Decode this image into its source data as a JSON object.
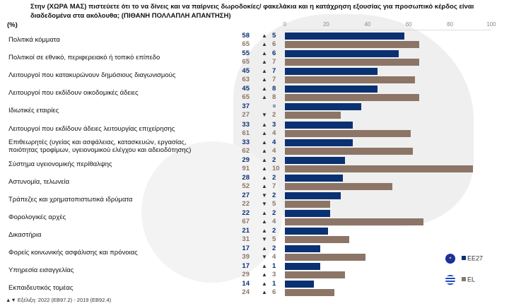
{
  "chart_data": {
    "type": "bar",
    "orientation": "horizontal",
    "title": "Στην (ΧΩΡΑ ΜΑΣ) πιστεύετε ότι το να δίνεις και να παίρνεις δωροδοκίες/ φακελάκια και η κατάχρηση εξουσίας για προσωπικό κέρδος είναι διαδεδομένα στα ακόλουθα; (ΠΙΘΑΝΗ ΠΟΛΛΑΠΛΗ ΑΠΑΝΤΗΣΗ)",
    "unit_label": "(%)",
    "xlim": [
      0,
      100
    ],
    "xticks": [
      "0",
      "20",
      "40",
      "60",
      "80",
      "100"
    ],
    "categories": [
      "Πολιτικά κόμματα",
      "Πολιτικοί σε εθνικό, περιφερειακό ή τοπικό επίπεδο",
      "Λειτουργοί που κατακυρώνουν δημόσιους διαγωνισμούς",
      "Λειτουργοί που εκδίδουν οικοδομικές άδειες",
      "Ιδιωτικές εταιρίες",
      "Λειτουργοί που εκδίδουν άδειες λειτουργίας επιχείρησης",
      "Επιθεωρητές (υγείας και ασφάλειας, κατασκευών, εργασίας, ποιότητας τροφίμων, υγειονομικού ελέγχου και αδειοδότησης)",
      "Σύστημα υγειονομικής περίθαλψης",
      "Αστυνομία, τελωνεία",
      "Τράπεζες και χρηματοπιστωτικά ιδρύματα",
      "Φορολογικές αρχές",
      "Δικαστήρια",
      "Φορείς κοινωνικής ασφάλισης και πρόνοιας",
      "Υπηρεσία εισαγγελίας",
      "Εκπαιδευτικός τομέας"
    ],
    "series": [
      {
        "name": "EE27",
        "color": "#0a3172",
        "values": [
          58,
          55,
          45,
          45,
          37,
          33,
          33,
          29,
          28,
          27,
          22,
          21,
          17,
          17,
          14
        ],
        "change_dir": [
          "up",
          "up",
          "up",
          "up",
          "=",
          "up",
          "up",
          "up",
          "up",
          "down",
          "up",
          "up",
          "up",
          "up",
          "up"
        ],
        "change": [
          "5",
          "6",
          "7",
          "8",
          "",
          "3",
          "4",
          "2",
          "2",
          "2",
          "2",
          "2",
          "2",
          "1",
          "1"
        ]
      },
      {
        "name": "EL",
        "color": "#8c7566",
        "values": [
          65,
          65,
          63,
          65,
          27,
          61,
          62,
          91,
          52,
          22,
          67,
          31,
          39,
          29,
          24
        ],
        "change_dir": [
          "up",
          "up",
          "up",
          "up",
          "down",
          "up",
          "up",
          "up",
          "up",
          "down",
          "up",
          "down",
          "down",
          "up",
          "up"
        ],
        "change": [
          "6",
          "7",
          "7",
          "8",
          "2",
          "4",
          "4",
          "10",
          "7",
          "5",
          "4",
          "5",
          "4",
          "3",
          "6"
        ]
      }
    ],
    "legend": "bottom-right",
    "footnote": "▲▼ Εξέλιξη: 2022 (EB97.2) - 2019 (EB92.4)"
  }
}
